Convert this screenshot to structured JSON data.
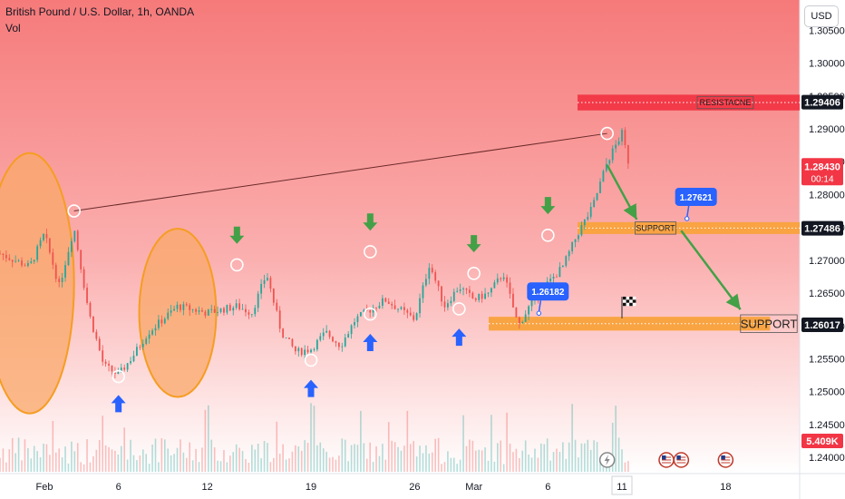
{
  "header": {
    "symbol_title": "British Pound / U.S. Dollar, 1h, OANDA",
    "volume_label": "Vol",
    "currency_button": "USD"
  },
  "colors": {
    "bg_top": "#f67a7a",
    "bg_bottom": "#ffffff",
    "candle_up": "#26a69a",
    "candle_down": "#ef5350",
    "support_band": "#f9a23c",
    "resistance_band": "#f23645",
    "arrow_green": "#43a047",
    "arrow_blue": "#2962ff",
    "ellipse_fill": "#f9a86a",
    "ellipse_stroke": "#f59d22",
    "callout_blue": "#2962ff"
  },
  "chart_data": {
    "type": "candlestick",
    "y_axis": {
      "range": [
        1.2385,
        1.3085
      ],
      "tick_values": [
        1.305,
        1.3,
        1.295,
        1.29,
        1.285,
        1.28,
        1.275,
        1.27,
        1.265,
        1.26,
        1.255,
        1.25,
        1.245,
        1.24
      ],
      "tick_labels": [
        "1.30500",
        "1.30000",
        "1.29500",
        "1.29000",
        "1.28500",
        "1.28000",
        "1.27500",
        "1.27000",
        "1.26500",
        "1.26000",
        "1.25500",
        "1.25000",
        "1.24500",
        "1.24000"
      ]
    },
    "x_axis": {
      "range": [
        "2024-01-29",
        "2024-03-23"
      ],
      "ticks": [
        {
          "date": "2024-02-01",
          "label": "Feb"
        },
        {
          "date": "2024-02-06",
          "label": "6"
        },
        {
          "date": "2024-02-12",
          "label": "12"
        },
        {
          "date": "2024-02-19",
          "label": "19"
        },
        {
          "date": "2024-02-26",
          "label": "26"
        },
        {
          "date": "2024-03-01",
          "label": "Mar"
        },
        {
          "date": "2024-03-06",
          "label": "6"
        },
        {
          "date": "2024-03-11",
          "label": "11",
          "highlight": true
        },
        {
          "date": "2024-03-18",
          "label": "18"
        }
      ]
    },
    "price_path": [
      [
        "2024-01-29",
        1.271
      ],
      [
        "2024-01-31",
        1.269
      ],
      [
        "2024-02-01",
        1.274
      ],
      [
        "2024-02-02",
        1.266
      ],
      [
        "2024-02-03",
        1.275
      ],
      [
        "2024-02-04",
        1.262
      ],
      [
        "2024-02-05",
        1.254
      ],
      [
        "2024-02-06",
        1.2525
      ],
      [
        "2024-02-07",
        1.2555
      ],
      [
        "2024-02-08",
        1.259
      ],
      [
        "2024-02-10",
        1.263
      ],
      [
        "2024-02-12",
        1.262
      ],
      [
        "2024-02-14",
        1.263
      ],
      [
        "2024-02-15",
        1.262
      ],
      [
        "2024-02-16",
        1.268
      ],
      [
        "2024-02-17",
        1.259
      ],
      [
        "2024-02-18",
        1.256
      ],
      [
        "2024-02-19",
        1.2565
      ],
      [
        "2024-02-20",
        1.259
      ],
      [
        "2024-02-21",
        1.257
      ],
      [
        "2024-02-22",
        1.261
      ],
      [
        "2024-02-24",
        1.264
      ],
      [
        "2024-02-26",
        1.261
      ],
      [
        "2024-02-27",
        1.2695
      ],
      [
        "2024-02-28",
        1.263
      ],
      [
        "2024-02-29",
        1.266
      ],
      [
        "2024-03-01",
        1.264
      ],
      [
        "2024-03-02",
        1.265
      ],
      [
        "2024-03-03",
        1.268
      ],
      [
        "2024-03-04",
        1.26
      ],
      [
        "2024-03-05",
        1.264
      ],
      [
        "2024-03-07",
        1.269
      ],
      [
        "2024-03-08",
        1.274
      ],
      [
        "2024-03-09",
        1.278
      ],
      [
        "2024-03-10",
        1.285
      ],
      [
        "2024-03-11",
        1.2893
      ],
      [
        "2024-03-11T12",
        1.2843
      ]
    ],
    "last_price": {
      "value": 1.2843,
      "label": "1.28430",
      "countdown": "00:14"
    },
    "price_labels": [
      {
        "value": 1.29406,
        "label": "1.29406"
      },
      {
        "value": 1.27486,
        "label": "1.27486"
      },
      {
        "value": 1.26017,
        "label": "1.26017"
      }
    ],
    "volume_badge": "5.409K",
    "annotations": {
      "resistance": {
        "label": "RESISTACNE",
        "y": [
          1.2928,
          1.2952
        ],
        "x_from": "2024-03-08"
      },
      "support_upper": {
        "label": "SUPPORT",
        "y": [
          1.274,
          1.2758
        ],
        "x_from": "2024-03-08"
      },
      "support_lower": {
        "label": "SUPPORT",
        "y": [
          1.2593,
          1.2614
        ],
        "x_from": "2024-03-02",
        "x_to": "2024-03-21"
      },
      "callouts": [
        {
          "label": "1.27621",
          "date": "2024-03-16",
          "y": 1.2762
        },
        {
          "label": "1.26182",
          "date": "2024-03-06",
          "y": 1.2618
        }
      ],
      "trendline": [
        [
          "2024-02-03",
          1.2775
        ],
        [
          "2024-03-10",
          1.2893
        ]
      ],
      "touch_circles": [
        [
          "2024-02-03",
          1.2775
        ],
        [
          "2024-02-06",
          1.2523
        ],
        [
          "2024-02-14",
          1.2693
        ],
        [
          "2024-02-19",
          1.2548
        ],
        [
          "2024-02-23",
          1.2713
        ],
        [
          "2024-02-23",
          1.2618
        ],
        [
          "2024-02-29",
          1.2626
        ],
        [
          "2024-03-01",
          1.268
        ],
        [
          "2024-03-06",
          1.2738
        ],
        [
          "2024-03-10",
          1.2893
        ]
      ],
      "down_arrows": [
        [
          "2024-02-14",
          1.2725
        ],
        [
          "2024-02-23",
          1.2745
        ],
        [
          "2024-03-01",
          1.2712
        ],
        [
          "2024-03-06",
          1.277
        ]
      ],
      "up_arrows": [
        [
          "2024-02-06",
          1.2495
        ],
        [
          "2024-02-19",
          1.2518
        ],
        [
          "2024-02-23",
          1.2588
        ],
        [
          "2024-02-29",
          1.2596
        ]
      ],
      "ellipses": [
        {
          "date_center": "2024-01-31",
          "y_center": 1.2665,
          "days_half_width": 3.0,
          "y_half_height": 0.0198
        },
        {
          "date_center": "2024-02-10",
          "y_center": 1.262,
          "days_half_width": 2.6,
          "y_half_height": 0.0128
        }
      ],
      "projection_arrows": [
        [
          [
            "2024-03-10",
            1.2845
          ],
          [
            "2024-03-12",
            1.2762
          ]
        ],
        [
          [
            "2024-03-15",
            1.2745
          ],
          [
            "2024-03-19",
            1.2625
          ]
        ]
      ],
      "flag": {
        "date": "2024-03-11",
        "y": 1.2628
      },
      "event_icons": [
        "2024-03-10",
        "2024-03-14",
        "2024-03-15",
        "2024-03-18"
      ]
    }
  }
}
